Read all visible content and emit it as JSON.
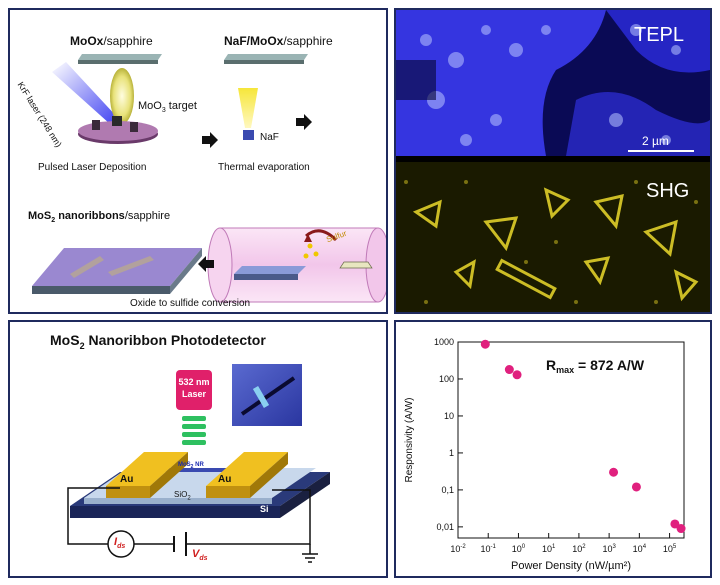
{
  "synthesis": {
    "step1_title_bold": "MoOx",
    "step1_title_rest": "/sapphire",
    "step2_title_bold": "NaF/MoOx",
    "step2_title_rest": "/sapphire",
    "laser_label": "KrF laser (248 nm)",
    "target_label": "MoO",
    "target_sub": "3",
    "target_rest": " target",
    "naf_label": "NaF",
    "pld_caption": "Pulsed Laser Deposition",
    "thermal_caption": "Thermal evaporation",
    "final_title_bold": "MoS",
    "final_title_sub": "2",
    "final_title_bold2": " nanoribbons",
    "final_title_rest": "/sapphire",
    "sulfur_label": "Sulfur",
    "conversion_caption": "Oxide to sulfide conversion"
  },
  "imaging": {
    "top_label": "TEPL",
    "scale_label": "2 µm",
    "bottom_label": "SHG",
    "top_color": "#2f35e0",
    "bottom_color": "#d8c21a"
  },
  "device": {
    "title_pre": "MoS",
    "title_sub": "2",
    "title_post": " Nanoribbon Photodetector",
    "laser_line1": "532 nm",
    "laser_line2": "Laser",
    "au_left": "Au",
    "au_right": "Au",
    "nr_label": "MoS",
    "nr_sub": "2",
    "nr_post": " NR",
    "sio2_label": "SiO",
    "sio2_sub": "2",
    "si_label": "Si",
    "ids_label": "I",
    "ids_sub": "ds",
    "vds_label": "V",
    "vds_sub": "ds"
  },
  "chart_data": {
    "type": "scatter",
    "xlabel": "Power Density (nW/µm²)",
    "ylabel": "Responsivity (A/W)",
    "annotation": "R",
    "annotation_sub": "max",
    "annotation_rest": " = 872 A/W",
    "x_scale": "log",
    "y_scale": "log",
    "xlim": [
      0.01,
      300000
    ],
    "ylim": [
      0.005,
      1000
    ],
    "x_ticks": [
      {
        "value": 0.01,
        "base": "10",
        "exp": "-2"
      },
      {
        "value": 0.1,
        "base": "10",
        "exp": "-1"
      },
      {
        "value": 1,
        "base": "10",
        "exp": "0"
      },
      {
        "value": 10,
        "base": "10",
        "exp": "1"
      },
      {
        "value": 100,
        "base": "10",
        "exp": "2"
      },
      {
        "value": 1000,
        "base": "10",
        "exp": "3"
      },
      {
        "value": 10000,
        "base": "10",
        "exp": "4"
      },
      {
        "value": 100000,
        "base": "10",
        "exp": "5"
      }
    ],
    "y_ticks": [
      {
        "value": 0.01,
        "label": "0,01"
      },
      {
        "value": 0.1,
        "label": "0,1"
      },
      {
        "value": 1,
        "label": "1"
      },
      {
        "value": 10,
        "label": "10"
      },
      {
        "value": 100,
        "label": "100"
      },
      {
        "value": 1000,
        "label": "1000"
      }
    ],
    "points": [
      {
        "x": 0.08,
        "y": 872
      },
      {
        "x": 0.5,
        "y": 180
      },
      {
        "x": 0.9,
        "y": 130
      },
      {
        "x": 1400,
        "y": 0.3
      },
      {
        "x": 8000,
        "y": 0.12
      },
      {
        "x": 150000,
        "y": 0.012
      },
      {
        "x": 240000,
        "y": 0.009
      }
    ],
    "marker_color": "#e0207e"
  }
}
